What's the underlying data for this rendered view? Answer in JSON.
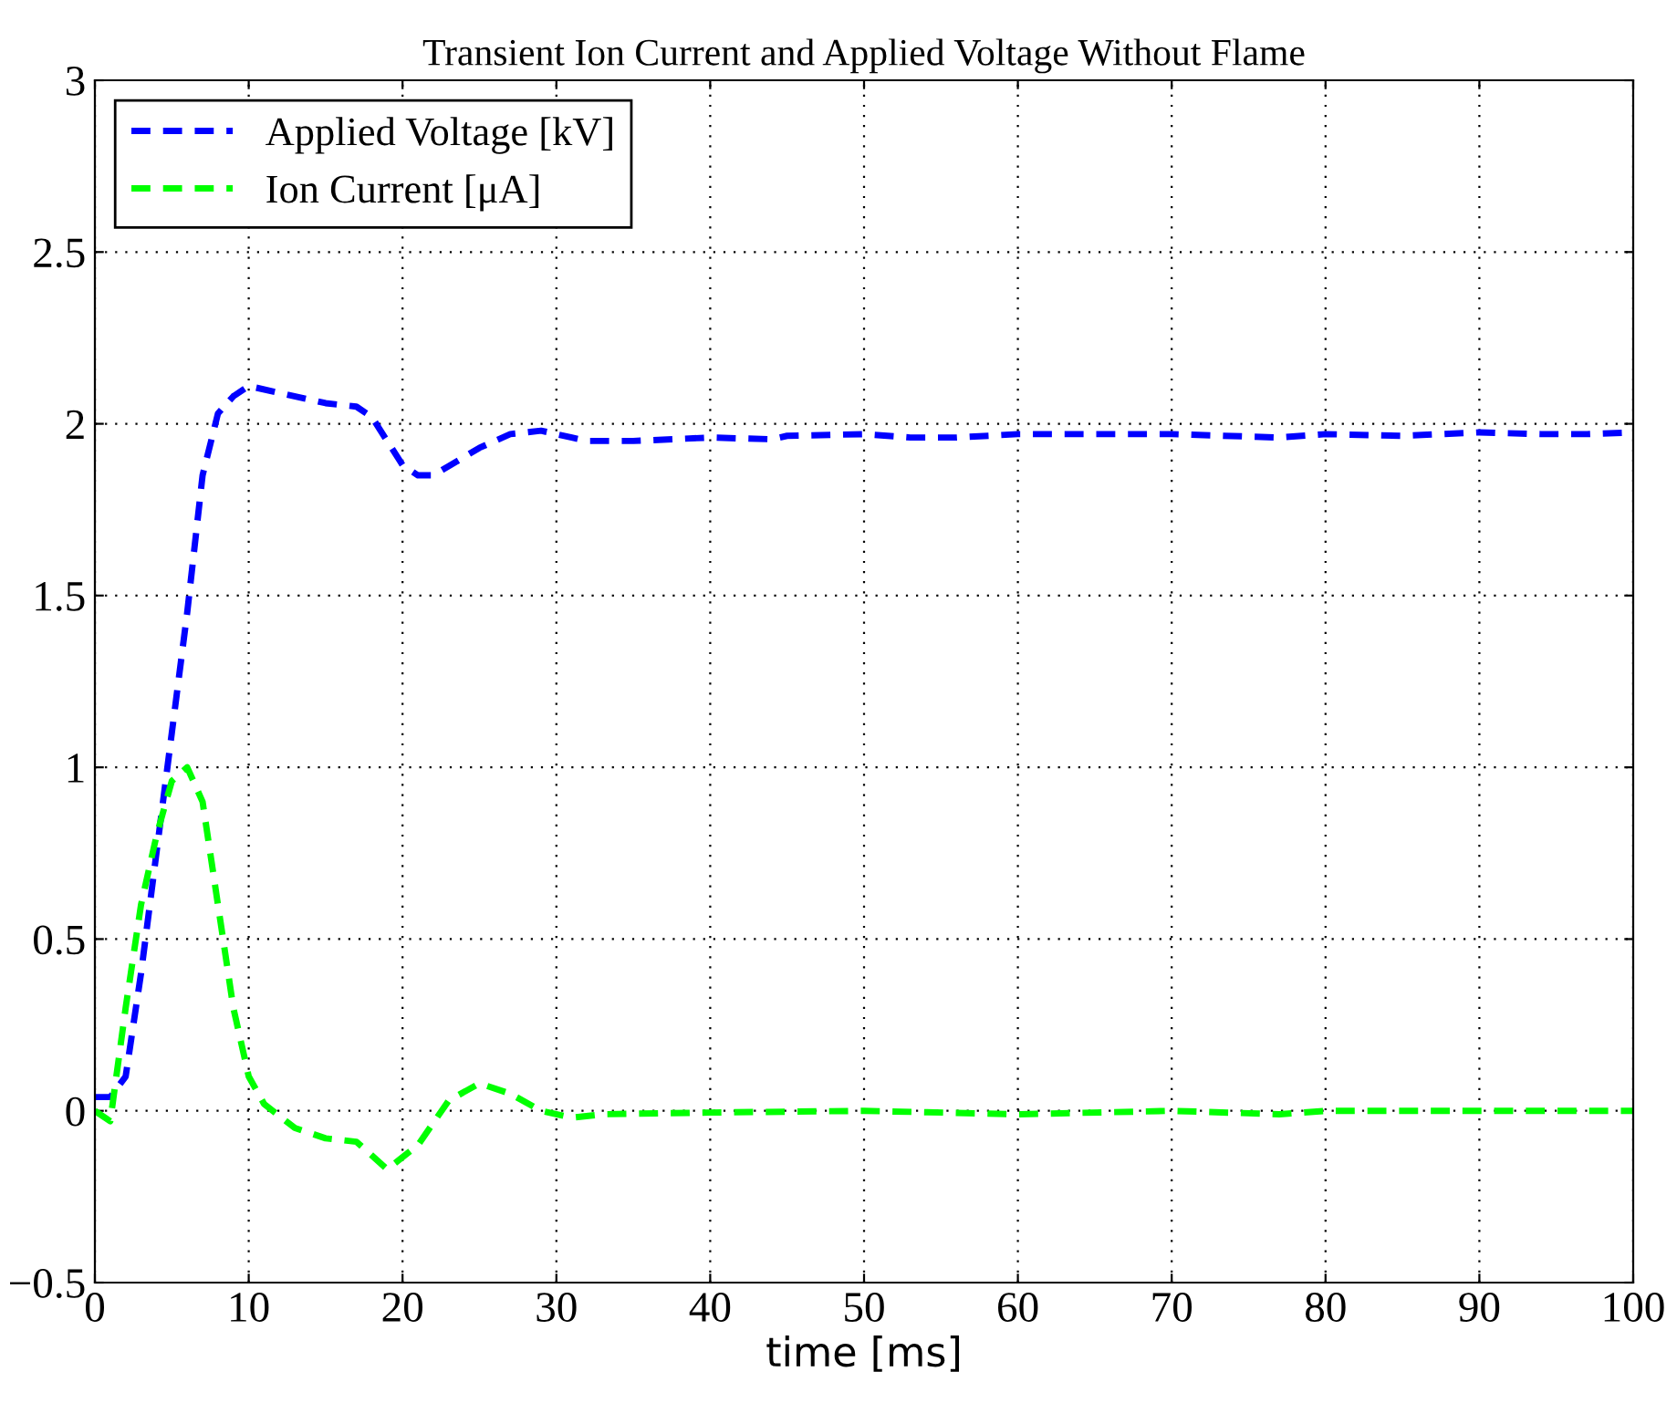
{
  "chart_data": {
    "type": "line",
    "title": "Transient Ion Current and Applied Voltage Without Flame",
    "xlabel": "time [ms]",
    "xlim": [
      0,
      100
    ],
    "xticks": [
      0,
      10,
      20,
      30,
      40,
      50,
      60,
      70,
      80,
      90,
      100
    ],
    "ylim": [
      -0.5,
      3
    ],
    "yticks": [
      {
        "value": -0.5,
        "label": "−0.5"
      },
      0,
      0.5,
      1,
      1.5,
      2,
      2.5,
      3
    ],
    "grid": true,
    "legend": "top left",
    "line_style": "dashed",
    "marker": "none",
    "series": [
      {
        "name": "Applied Voltage [kV]",
        "color": "#0000ff",
        "x": [
          0,
          1,
          2,
          3,
          4,
          5,
          6,
          7,
          8,
          9,
          10,
          12,
          15,
          17,
          18,
          20,
          21,
          22,
          25,
          27,
          29,
          31,
          32,
          35,
          40,
          44,
          45,
          50,
          53,
          56,
          60,
          70,
          77,
          80,
          85,
          90,
          94,
          97,
          100
        ],
        "values": [
          0.04,
          0.04,
          0.1,
          0.4,
          0.75,
          1.1,
          1.45,
          1.85,
          2.03,
          2.08,
          2.11,
          2.09,
          2.06,
          2.05,
          2.02,
          1.88,
          1.85,
          1.85,
          1.93,
          1.97,
          1.98,
          1.96,
          1.95,
          1.95,
          1.96,
          1.955,
          1.965,
          1.97,
          1.96,
          1.96,
          1.97,
          1.97,
          1.96,
          1.97,
          1.965,
          1.975,
          1.97,
          1.97,
          1.975
        ]
      },
      {
        "name": "Ion Current [μA]",
        "color": "#00ff00",
        "x": [
          0,
          1,
          2,
          3,
          4,
          5,
          6,
          7,
          8,
          9,
          10,
          11,
          13,
          15,
          17,
          19,
          21,
          23,
          25,
          27,
          29,
          31,
          33,
          40,
          50,
          60,
          70,
          77,
          80,
          90,
          100
        ],
        "values": [
          0,
          -0.03,
          0.3,
          0.6,
          0.8,
          0.96,
          1.0,
          0.9,
          0.6,
          0.3,
          0.1,
          0.02,
          -0.05,
          -0.08,
          -0.09,
          -0.17,
          -0.1,
          0.03,
          0.08,
          0.05,
          0.0,
          -0.02,
          -0.01,
          -0.005,
          0,
          -0.01,
          0,
          -0.01,
          0,
          0,
          0
        ]
      }
    ]
  }
}
